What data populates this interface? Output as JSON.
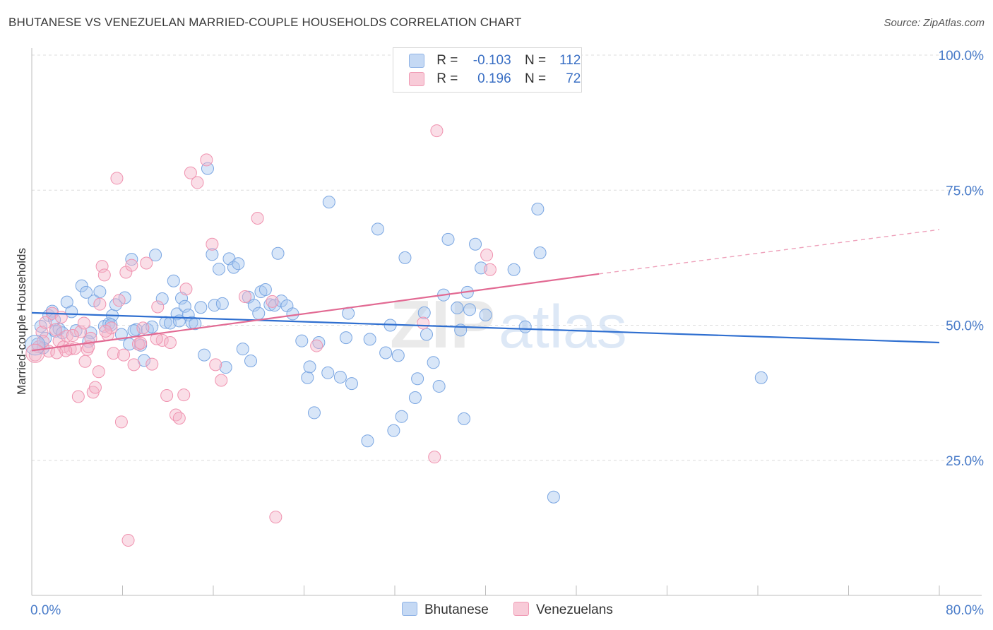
{
  "header": {
    "title": "BHUTANESE VS VENEZUELAN MARRIED-COUPLE HOUSEHOLDS CORRELATION CHART",
    "source": "Source: ZipAtlas.com"
  },
  "watermark": {
    "zip": "ZIP",
    "atlas": "atlas"
  },
  "legend": {
    "rows": [
      {
        "r_label": "R =",
        "r_value": "-0.103",
        "n_label": "N =",
        "n_value": "112",
        "color": "#a9c8f0"
      },
      {
        "r_label": "R =",
        "r_value": "0.196",
        "n_label": "N =",
        "n_value": "72",
        "color": "#f4b6c9"
      }
    ]
  },
  "bottom_legend": {
    "items": [
      {
        "label": "Bhutanese",
        "color": "#a9c8f0"
      },
      {
        "label": "Venezuelans",
        "color": "#f4b6c9"
      }
    ]
  },
  "chart_data": {
    "type": "scatter",
    "title": "BHUTANESE VS VENEZUELAN MARRIED-COUPLE HOUSEHOLDS CORRELATION CHART",
    "xlabel": "",
    "ylabel": "Married-couple Households",
    "xlim": [
      0,
      80
    ],
    "ylim": [
      0,
      100
    ],
    "x_tick_labels": [
      "0.0%",
      "80.0%"
    ],
    "y_ticks": [
      25,
      50,
      75,
      100
    ],
    "y_tick_labels": [
      "25.0%",
      "50.0%",
      "75.0%",
      "100.0%"
    ],
    "grid": true,
    "legend_position": "top-center",
    "series": [
      {
        "name": "Bhutanese",
        "color": "#6fa0e0",
        "trend": {
          "x": [
            0,
            80
          ],
          "y": [
            52.3,
            46.8
          ],
          "dashed_from": null
        },
        "points": [
          [
            0.5,
            46.5
          ],
          [
            0.8,
            49.8
          ],
          [
            1.2,
            47.6
          ],
          [
            1.5,
            51.8
          ],
          [
            1.8,
            52.6
          ],
          [
            2.1,
            48.9
          ],
          [
            2.4,
            49.3
          ],
          [
            2.7,
            48.6
          ],
          [
            3.1,
            54.3
          ],
          [
            3.5,
            52.5
          ],
          [
            3.9,
            49.0
          ],
          [
            4.4,
            57.3
          ],
          [
            4.8,
            56.1
          ],
          [
            5.2,
            48.6
          ],
          [
            5.5,
            54.5
          ],
          [
            6.0,
            56.2
          ],
          [
            6.4,
            49.8
          ],
          [
            6.8,
            50.3
          ],
          [
            7.1,
            51.8
          ],
          [
            7.4,
            53.8
          ],
          [
            7.9,
            48.3
          ],
          [
            8.2,
            55.1
          ],
          [
            8.6,
            46.5
          ],
          [
            8.8,
            62.2
          ],
          [
            9.2,
            49.2
          ],
          [
            9.6,
            46.3
          ],
          [
            9.9,
            43.5
          ],
          [
            10.2,
            49.2
          ],
          [
            10.6,
            49.7
          ],
          [
            10.9,
            63.0
          ],
          [
            11.5,
            54.9
          ],
          [
            11.8,
            50.5
          ],
          [
            12.2,
            50.4
          ],
          [
            12.5,
            58.2
          ],
          [
            12.8,
            52.1
          ],
          [
            13.2,
            55.0
          ],
          [
            13.5,
            53.5
          ],
          [
            13.8,
            51.9
          ],
          [
            14.1,
            50.5
          ],
          [
            14.4,
            50.3
          ],
          [
            14.9,
            53.3
          ],
          [
            15.2,
            44.5
          ],
          [
            15.5,
            79.0
          ],
          [
            15.9,
            63.1
          ],
          [
            16.1,
            53.7
          ],
          [
            16.5,
            60.4
          ],
          [
            16.8,
            54.0
          ],
          [
            17.1,
            42.2
          ],
          [
            17.4,
            62.3
          ],
          [
            17.8,
            60.7
          ],
          [
            18.2,
            61.4
          ],
          [
            18.6,
            45.6
          ],
          [
            19.1,
            55.2
          ],
          [
            19.3,
            43.4
          ],
          [
            19.6,
            53.7
          ],
          [
            20.0,
            52.2
          ],
          [
            20.2,
            56.2
          ],
          [
            20.6,
            56.6
          ],
          [
            21.0,
            53.8
          ],
          [
            21.4,
            53.7
          ],
          [
            21.7,
            63.3
          ],
          [
            22.0,
            54.5
          ],
          [
            22.5,
            53.6
          ],
          [
            23.0,
            52.1
          ],
          [
            23.8,
            47.1
          ],
          [
            24.3,
            40.3
          ],
          [
            24.5,
            42.3
          ],
          [
            24.9,
            33.8
          ],
          [
            25.3,
            46.8
          ],
          [
            26.1,
            41.2
          ],
          [
            26.2,
            72.8
          ],
          [
            27.2,
            40.4
          ],
          [
            27.7,
            47.7
          ],
          [
            27.9,
            52.2
          ],
          [
            28.2,
            39.2
          ],
          [
            29.6,
            28.6
          ],
          [
            29.8,
            47.4
          ],
          [
            30.5,
            67.8
          ],
          [
            31.2,
            44.9
          ],
          [
            31.6,
            50.0
          ],
          [
            31.9,
            30.5
          ],
          [
            32.3,
            44.4
          ],
          [
            32.6,
            33.1
          ],
          [
            32.9,
            62.5
          ],
          [
            33.8,
            36.6
          ],
          [
            34.0,
            40.1
          ],
          [
            34.6,
            52.3
          ],
          [
            34.8,
            48.3
          ],
          [
            35.4,
            43.1
          ],
          [
            35.9,
            38.7
          ],
          [
            36.3,
            55.6
          ],
          [
            36.7,
            65.9
          ],
          [
            37.5,
            53.2
          ],
          [
            37.8,
            49.1
          ],
          [
            38.1,
            32.7
          ],
          [
            38.4,
            56.1
          ],
          [
            38.6,
            52.9
          ],
          [
            39.1,
            65.0
          ],
          [
            39.6,
            60.6
          ],
          [
            40.0,
            51.9
          ],
          [
            42.5,
            60.3
          ],
          [
            43.5,
            49.7
          ],
          [
            44.6,
            71.5
          ],
          [
            44.8,
            63.4
          ],
          [
            46.0,
            18.2
          ],
          [
            64.3,
            40.3
          ],
          [
            1.0,
            45.8
          ],
          [
            2.0,
            51.0
          ],
          [
            5.0,
            47.0
          ],
          [
            7.0,
            50.1
          ],
          [
            9.0,
            49.0
          ],
          [
            13.0,
            50.8
          ]
        ]
      },
      {
        "name": "Venezuelans",
        "color": "#f08aa8",
        "trend": {
          "x": [
            0,
            50,
            80
          ],
          "y": [
            45.3,
            59.5,
            67.7
          ],
          "dashed_from": 50
        },
        "points": [
          [
            0.3,
            44.5
          ],
          [
            0.6,
            46.0
          ],
          [
            0.9,
            48.7
          ],
          [
            1.2,
            50.5
          ],
          [
            1.5,
            45.2
          ],
          [
            1.8,
            52.2
          ],
          [
            2.1,
            49.2
          ],
          [
            2.4,
            47.1
          ],
          [
            2.8,
            46.0
          ],
          [
            3.1,
            48.0
          ],
          [
            3.4,
            45.6
          ],
          [
            3.8,
            45.7
          ],
          [
            4.1,
            36.8
          ],
          [
            4.3,
            48.8
          ],
          [
            4.6,
            50.4
          ],
          [
            4.9,
            45.5
          ],
          [
            5.2,
            47.6
          ],
          [
            5.4,
            37.6
          ],
          [
            5.6,
            38.5
          ],
          [
            5.9,
            41.4
          ],
          [
            6.2,
            60.9
          ],
          [
            6.4,
            59.3
          ],
          [
            6.7,
            48.2
          ],
          [
            7.0,
            49.5
          ],
          [
            7.2,
            44.8
          ],
          [
            7.5,
            77.2
          ],
          [
            7.9,
            32.1
          ],
          [
            8.1,
            44.5
          ],
          [
            8.3,
            59.8
          ],
          [
            8.5,
            10.2
          ],
          [
            8.8,
            61.1
          ],
          [
            9.0,
            42.7
          ],
          [
            9.4,
            46.5
          ],
          [
            9.6,
            46.7
          ],
          [
            10.1,
            61.5
          ],
          [
            10.6,
            42.8
          ],
          [
            11.1,
            53.4
          ],
          [
            11.5,
            47.2
          ],
          [
            11.9,
            37.0
          ],
          [
            12.2,
            46.8
          ],
          [
            12.7,
            33.4
          ],
          [
            13.0,
            32.8
          ],
          [
            13.4,
            37.1
          ],
          [
            13.6,
            56.7
          ],
          [
            14.0,
            78.2
          ],
          [
            14.6,
            76.4
          ],
          [
            15.4,
            80.6
          ],
          [
            15.9,
            65.0
          ],
          [
            16.2,
            42.7
          ],
          [
            16.7,
            39.8
          ],
          [
            18.8,
            55.3
          ],
          [
            19.9,
            69.8
          ],
          [
            21.2,
            54.4
          ],
          [
            21.5,
            14.5
          ],
          [
            25.1,
            46.2
          ],
          [
            34.5,
            50.4
          ],
          [
            35.5,
            25.6
          ],
          [
            35.7,
            86.0
          ],
          [
            40.1,
            63.0
          ],
          [
            40.4,
            60.3
          ],
          [
            1.0,
            47.0
          ],
          [
            2.6,
            51.5
          ],
          [
            3.6,
            48.1
          ],
          [
            5.0,
            46.0
          ],
          [
            6.0,
            53.9
          ],
          [
            7.7,
            54.6
          ],
          [
            9.8,
            49.5
          ],
          [
            11.0,
            47.5
          ],
          [
            2.2,
            44.9
          ],
          [
            3.0,
            45.3
          ],
          [
            4.7,
            43.3
          ],
          [
            6.5,
            48.9
          ]
        ]
      }
    ]
  }
}
